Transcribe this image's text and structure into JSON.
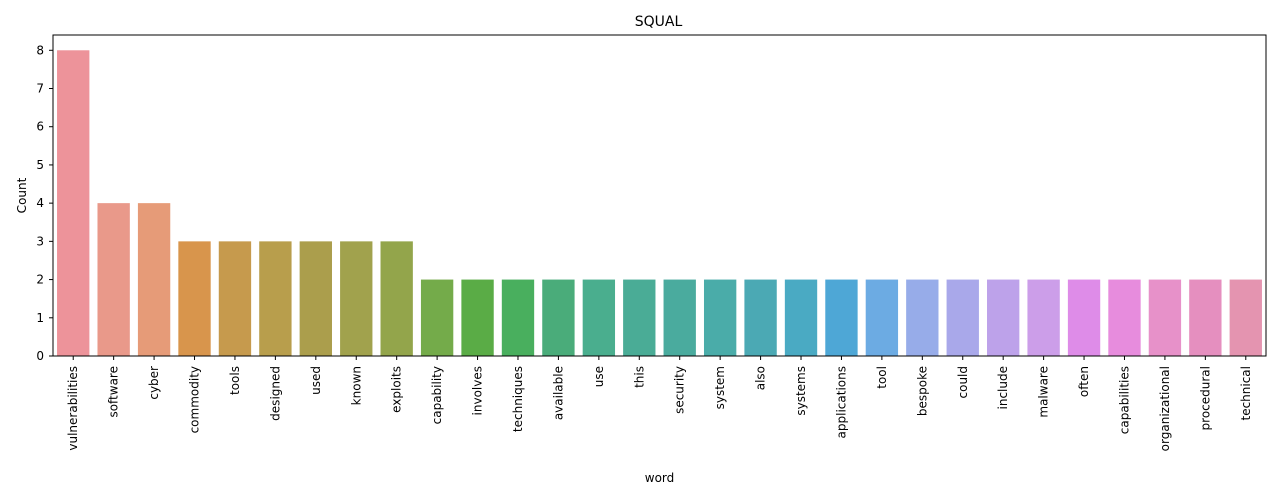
{
  "chart_data": {
    "type": "bar",
    "title": "SQUAL",
    "xlabel": "word",
    "ylabel": "Count",
    "ylim": [
      0,
      8.4
    ],
    "yticks": [
      0,
      1,
      2,
      3,
      4,
      5,
      6,
      7,
      8
    ],
    "grid": false,
    "legend": "none",
    "categories": [
      "vulnerabilities",
      "software",
      "cyber",
      "commodity",
      "tools",
      "designed",
      "used",
      "known",
      "exploits",
      "capability",
      "involves",
      "techniques",
      "available",
      "use",
      "this",
      "security",
      "system",
      "also",
      "systems",
      "applications",
      "tool",
      "bespoke",
      "could",
      "include",
      "malware",
      "often",
      "capabilities",
      "organizational",
      "procedural",
      "technical"
    ],
    "values": [
      8,
      4,
      4,
      3,
      3,
      3,
      3,
      3,
      3,
      2,
      2,
      2,
      2,
      2,
      2,
      2,
      2,
      2,
      2,
      2,
      2,
      2,
      2,
      2,
      2,
      2,
      2,
      2,
      2,
      2
    ],
    "colors": [
      "#ed939a",
      "#e9998a",
      "#e69b78",
      "#d8954c",
      "#c69a4d",
      "#b89e4c",
      "#ab9e4c",
      "#a1a24d",
      "#93a54b",
      "#74ab4a",
      "#5aac46",
      "#49af5e",
      "#4aac7a",
      "#4aae8e",
      "#4aac96",
      "#4aab9e",
      "#4aaca9",
      "#4ba9b4",
      "#4aaac3",
      "#4ea7d6",
      "#6cabe3",
      "#97ace9",
      "#a9a8ea",
      "#bda2ea",
      "#cc9ee9",
      "#de8ce8",
      "#e78cdd",
      "#e791c9",
      "#e58fbf",
      "#e494b0"
    ]
  }
}
